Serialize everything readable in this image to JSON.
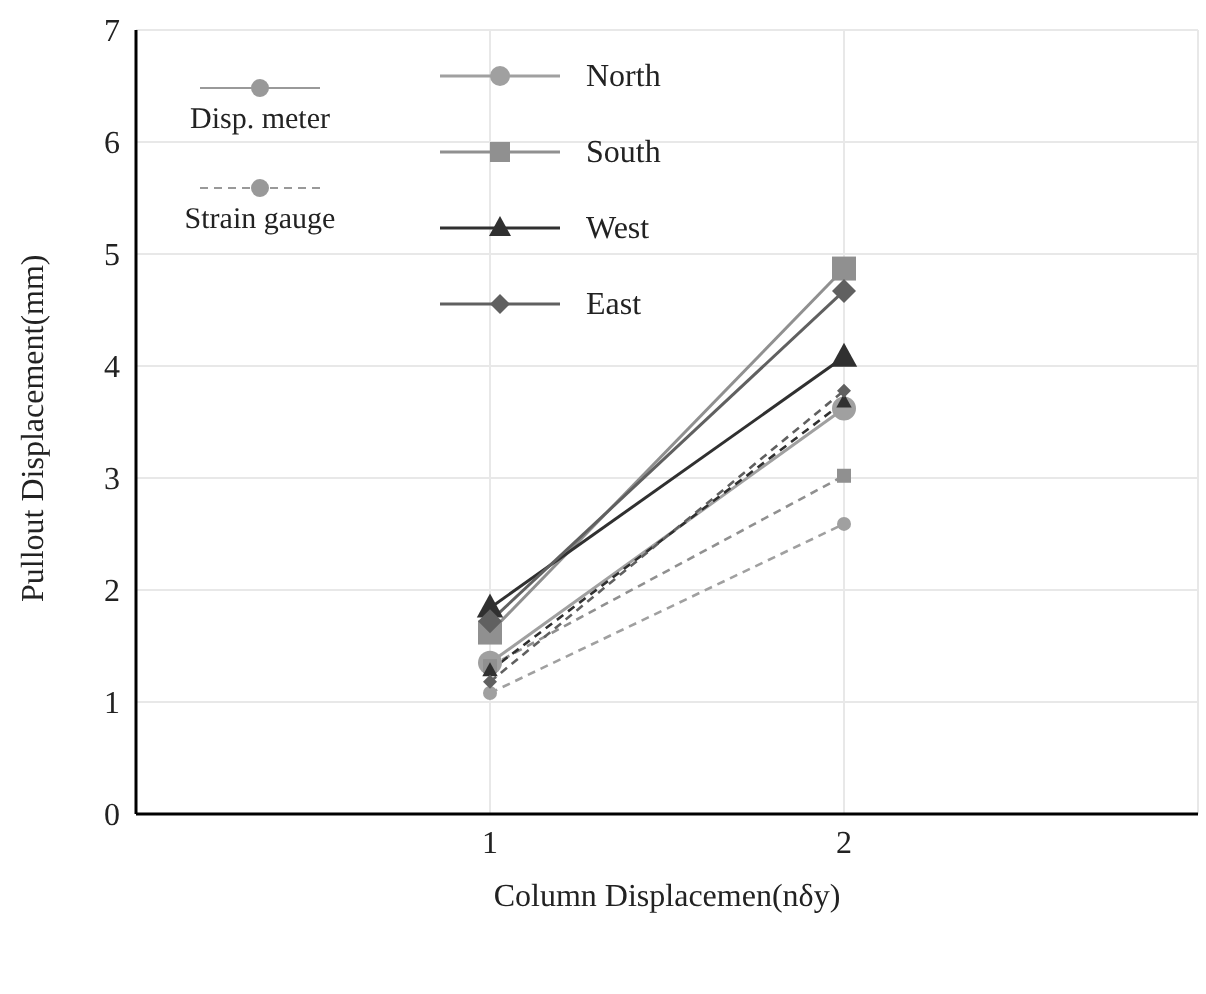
{
  "chart_data": {
    "type": "line",
    "xlabel": "Column Displacemen(nδy)",
    "ylabel": "Pullout Displacement(mm)",
    "x": [
      1,
      2
    ],
    "xlim": [
      0,
      3
    ],
    "xticks": [
      1,
      2
    ],
    "ylim": [
      0,
      7
    ],
    "yticks": [
      0,
      1,
      2,
      3,
      4,
      5,
      6,
      7
    ],
    "grid": true,
    "legend": "top left",
    "annotations": [
      "Disp. meter",
      "Strain gauge"
    ],
    "series": [
      {
        "name": "North",
        "color": "#a0a0a0",
        "marker": "circle",
        "line_style": "solid",
        "values": [
          1.35,
          3.62
        ]
      },
      {
        "name": "South",
        "color": "#909090",
        "marker": "square",
        "line_style": "solid",
        "values": [
          1.62,
          4.87
        ]
      },
      {
        "name": "West",
        "color": "#303030",
        "marker": "triangle",
        "line_style": "solid",
        "values": [
          1.84,
          4.08
        ]
      },
      {
        "name": "East",
        "color": "#606060",
        "marker": "diamond",
        "line_style": "solid",
        "values": [
          1.72,
          4.67
        ]
      },
      {
        "color": "#a0a0a0",
        "marker": "circle",
        "line_style": "dashed",
        "values": [
          1.08,
          2.59
        ]
      },
      {
        "color": "#909090",
        "marker": "square",
        "line_style": "dashed",
        "values": [
          1.32,
          3.02
        ]
      },
      {
        "color": "#303030",
        "marker": "triangle",
        "line_style": "dashed",
        "values": [
          1.28,
          3.68
        ]
      },
      {
        "color": "#606060",
        "marker": "diamond",
        "line_style": "dashed",
        "values": [
          1.18,
          3.78
        ]
      }
    ]
  }
}
